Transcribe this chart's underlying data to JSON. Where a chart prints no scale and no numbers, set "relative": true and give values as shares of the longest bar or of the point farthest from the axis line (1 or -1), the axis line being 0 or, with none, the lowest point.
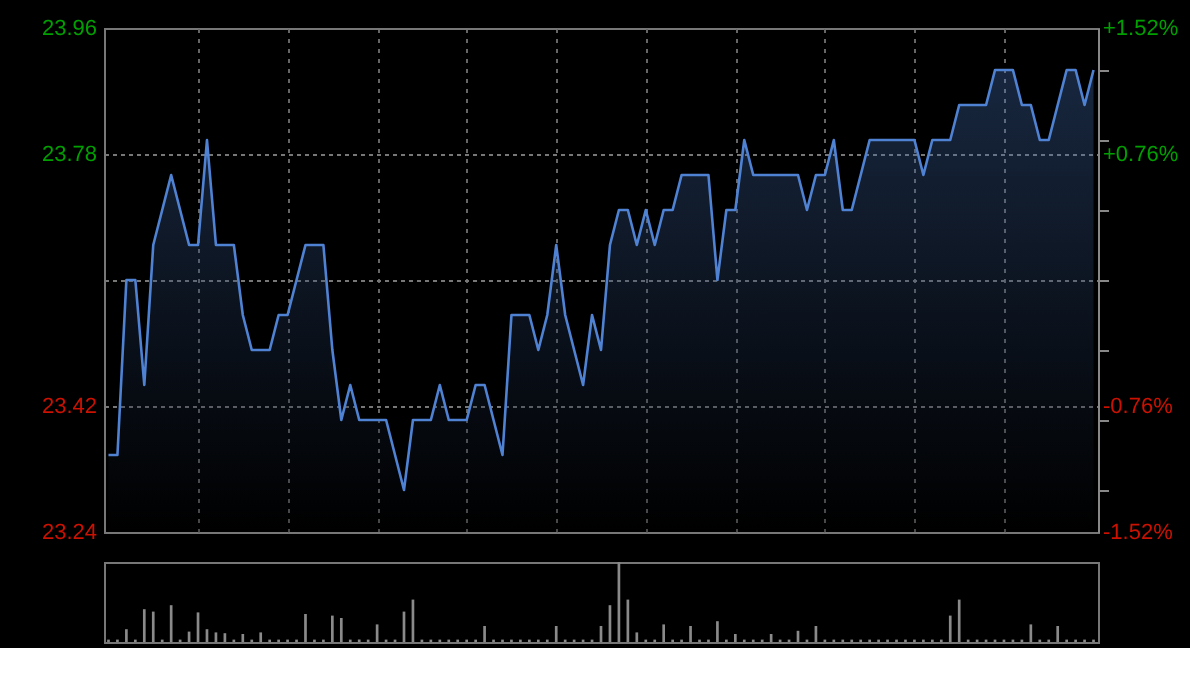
{
  "chart_data": [
    {
      "type": "area",
      "categories": [
        null,
        null,
        null,
        null,
        null,
        null,
        null,
        null,
        null,
        null,
        null,
        null,
        null,
        null,
        null,
        null,
        null,
        null,
        null,
        null,
        null,
        null,
        null,
        null,
        null,
        null,
        null,
        null,
        null,
        null,
        null,
        null,
        null,
        null,
        null,
        null,
        null,
        null,
        null,
        null,
        null,
        null,
        null,
        null,
        null,
        null,
        null,
        null,
        null,
        null,
        null,
        null,
        null,
        null,
        null,
        null,
        null,
        null,
        null,
        null,
        null,
        null,
        null,
        null,
        null,
        null,
        null,
        null,
        null,
        null,
        null,
        null,
        null,
        null,
        null,
        null,
        null,
        null,
        null,
        null,
        null,
        null,
        null,
        null,
        null,
        null,
        null,
        null,
        null,
        null,
        null,
        null,
        null,
        null,
        null,
        null,
        null,
        null,
        null,
        null,
        null,
        null,
        null,
        null,
        null,
        null,
        null,
        null,
        null,
        null,
        null
      ],
      "ylim": [
        23.24,
        23.96
      ],
      "yticks": [
        23.24,
        23.42,
        {
          "value": 23.6,
          "label": null
        },
        23.78,
        23.96
      ],
      "y2lim": [
        -1.52,
        1.52
      ],
      "y2ticks": [
        {
          "value": -1.52,
          "label": "-1.52%"
        },
        {
          "value": -0.76,
          "label": "-0.76%"
        },
        {
          "value": 0,
          "label": null
        },
        {
          "value": 0.76,
          "label": "+0.76%"
        },
        {
          "value": 1.52,
          "label": "+1.52%"
        }
      ],
      "grid": true,
      "series": [
        {
          "color": "#4f82d2",
          "values": [
            23.35,
            23.35,
            23.6,
            23.6,
            23.45,
            23.65,
            23.7,
            23.75,
            23.7,
            23.65,
            23.65,
            23.8,
            23.65,
            23.65,
            23.65,
            23.55,
            23.5,
            23.5,
            23.5,
            23.55,
            23.55,
            23.6,
            23.65,
            23.65,
            23.65,
            23.5,
            23.4,
            23.45,
            23.4,
            23.4,
            23.4,
            23.4,
            23.35,
            23.3,
            23.4,
            23.4,
            23.4,
            23.45,
            23.4,
            23.4,
            23.4,
            23.45,
            23.45,
            23.4,
            23.35,
            23.55,
            23.55,
            23.55,
            23.5,
            23.55,
            23.65,
            23.55,
            23.5,
            23.45,
            23.55,
            23.5,
            23.65,
            23.7,
            23.7,
            23.65,
            23.7,
            23.65,
            23.7,
            23.7,
            23.75,
            23.75,
            23.75,
            23.75,
            23.6,
            23.7,
            23.7,
            23.8,
            23.75,
            23.75,
            23.75,
            23.75,
            23.75,
            23.75,
            23.7,
            23.75,
            23.75,
            23.8,
            23.7,
            23.7,
            23.75,
            23.8,
            23.8,
            23.8,
            23.8,
            23.8,
            23.8,
            23.75,
            23.8,
            23.8,
            23.8,
            23.85,
            23.85,
            23.85,
            23.85,
            23.9,
            23.9,
            23.9,
            23.85,
            23.85,
            23.8,
            23.8,
            23.85,
            23.9,
            23.9,
            23.85,
            23.9
          ]
        }
      ]
    },
    {
      "type": "bar",
      "relative": true,
      "categories": [
        null,
        null,
        null,
        null,
        null,
        null,
        null,
        null,
        null,
        null,
        null,
        null,
        null,
        null,
        null,
        null,
        null,
        null,
        null,
        null,
        null,
        null,
        null,
        null,
        null,
        null,
        null,
        null,
        null,
        null,
        null,
        null,
        null,
        null,
        null,
        null,
        null,
        null,
        null,
        null,
        null,
        null,
        null,
        null,
        null,
        null,
        null,
        null,
        null,
        null,
        null,
        null,
        null,
        null,
        null,
        null,
        null,
        null,
        null,
        null,
        null,
        null,
        null,
        null,
        null,
        null,
        null,
        null,
        null,
        null,
        null,
        null,
        null,
        null,
        null,
        null,
        null,
        null,
        null,
        null,
        null,
        null,
        null,
        null,
        null,
        null,
        null,
        null,
        null,
        null,
        null,
        null,
        null,
        null,
        null,
        null,
        null,
        null,
        null,
        null,
        null,
        null,
        null,
        null,
        null,
        null,
        null,
        null,
        null,
        null,
        null
      ],
      "series": [
        {
          "color": "#8a8a8a",
          "values": [
            0.03,
            0.03,
            0.16,
            0.03,
            0.41,
            0.38,
            0.03,
            0.46,
            0.03,
            0.13,
            0.37,
            0.16,
            0.12,
            0.11,
            0.03,
            0.1,
            0.03,
            0.12,
            0.03,
            0.03,
            0.03,
            0.03,
            0.35,
            0.03,
            0.03,
            0.33,
            0.3,
            0.03,
            0.03,
            0.03,
            0.22,
            0.03,
            0.03,
            0.38,
            0.53,
            0.03,
            0.03,
            0.03,
            0.03,
            0.03,
            0.03,
            0.03,
            0.2,
            0.03,
            0.03,
            0.03,
            0.03,
            0.03,
            0.03,
            0.03,
            0.2,
            0.03,
            0.03,
            0.03,
            0.03,
            0.2,
            0.46,
            1,
            0.53,
            0.12,
            0.03,
            0.03,
            0.22,
            0.03,
            0.03,
            0.2,
            0.03,
            0.03,
            0.26,
            0.03,
            0.1,
            0.03,
            0.03,
            0.03,
            0.1,
            0.03,
            0.03,
            0.14,
            0.03,
            0.2,
            0.03,
            0.03,
            0.03,
            0.03,
            0.03,
            0.03,
            0.03,
            0.03,
            0.03,
            0.03,
            0.03,
            0.03,
            0.03,
            0.03,
            0.33,
            0.53,
            0.03,
            0.03,
            0.03,
            0.03,
            0.03,
            0.03,
            0.03,
            0.22,
            0.03,
            0.03,
            0.2,
            0.03,
            0.03,
            0.03,
            0.03
          ]
        }
      ]
    }
  ]
}
